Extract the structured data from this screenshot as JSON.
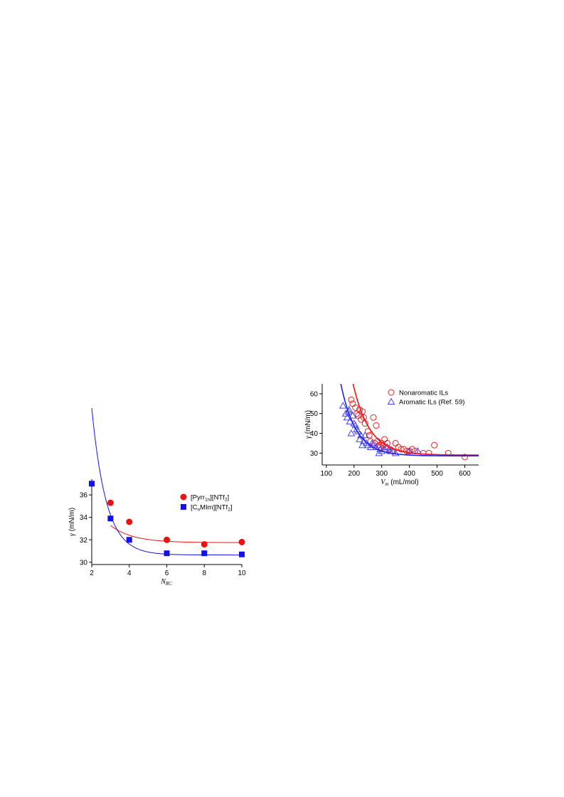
{
  "chart_data": [
    {
      "type": "scatter",
      "xlabel": "N",
      "xlabel_sub": "RC",
      "ylabel": "γ (mN/m)",
      "xlim": [
        2,
        10
      ],
      "ylim": [
        29.8,
        37.4
      ],
      "x_ticks": [
        "2",
        "4",
        "6",
        "8",
        "10"
      ],
      "y_ticks": [
        "30",
        "32",
        "34",
        "36"
      ],
      "series": [
        {
          "name": "[Pyrr1n][NTf2]",
          "name_parts": [
            "[Pyrr",
            "1n",
            "][NTf",
            "2",
            "]"
          ],
          "color": "#ee1111",
          "marker": "circle-filled",
          "x": [
            3,
            4,
            6,
            8,
            10
          ],
          "y": [
            35.3,
            33.6,
            32.0,
            31.6,
            31.8
          ],
          "fit": {
            "a": 31.75,
            "b": 8.4,
            "c": 0.85
          }
        },
        {
          "name": "[CnMIm][NTf2]",
          "name_parts": [
            "[C",
            "n",
            "MIm][NTf",
            "2",
            "]"
          ],
          "color": "#1111ee",
          "marker": "square-filled",
          "x": [
            2,
            3,
            4,
            6,
            8,
            10
          ],
          "y": [
            37.0,
            33.9,
            32.0,
            30.8,
            30.8,
            30.7
          ],
          "fit": {
            "a": 30.65,
            "b": 48.0,
            "c": 1.3
          }
        }
      ]
    },
    {
      "type": "scatter",
      "xlabel": "V",
      "xlabel_sub": "m",
      "xlabel_unit": " (mL/mol)",
      "ylabel": "γ (mN/m)",
      "xlim": [
        85,
        650
      ],
      "ylim": [
        24,
        65
      ],
      "x_ticks": [
        "100",
        "200",
        "300",
        "400",
        "500",
        "600"
      ],
      "y_ticks": [
        "30",
        "40",
        "50",
        "60"
      ],
      "series": [
        {
          "name": "Nonaromatic ILs",
          "color": "#ee2222",
          "marker": "circle-open",
          "x": [
            190,
            195,
            205,
            210,
            215,
            220,
            225,
            230,
            235,
            240,
            250,
            255,
            260,
            270,
            275,
            280,
            285,
            290,
            295,
            300,
            305,
            310,
            315,
            320,
            330,
            340,
            350,
            360,
            370,
            380,
            390,
            400,
            410,
            420,
            450,
            470,
            490,
            540,
            600
          ],
          "y": [
            57,
            55,
            53,
            50,
            49,
            52,
            47,
            51,
            48,
            45,
            41,
            39,
            36,
            48,
            35,
            44,
            36,
            34,
            33,
            35,
            34,
            37,
            33,
            35,
            32,
            31,
            35,
            33,
            32,
            32,
            31,
            31,
            32,
            31,
            30,
            30,
            34,
            30,
            28
          ],
          "fit": {
            "a": 29.0,
            "b": 34.0,
            "c": 60,
            "x0": 200
          }
        },
        {
          "name": "Aromatic ILs (Ref. 59)",
          "color": "#4444ee",
          "marker": "triangle-open",
          "x": [
            160,
            170,
            175,
            180,
            182,
            185,
            190,
            195,
            200,
            205,
            210,
            215,
            220,
            225,
            230,
            235,
            240,
            245,
            250,
            260,
            265,
            270,
            280,
            290,
            295,
            300,
            310,
            320,
            330,
            340,
            350,
            400,
            430
          ],
          "y": [
            54,
            50,
            48,
            51,
            52,
            46,
            40,
            49,
            45,
            44,
            42,
            41,
            37,
            39,
            34,
            36,
            39,
            35,
            34,
            33,
            35,
            34,
            33,
            30,
            32,
            31,
            32,
            33,
            31,
            31,
            30,
            31,
            31
          ],
          "fit": {
            "a": 28.6,
            "b": 22.0,
            "c": 55,
            "x0": 180
          }
        }
      ]
    }
  ]
}
